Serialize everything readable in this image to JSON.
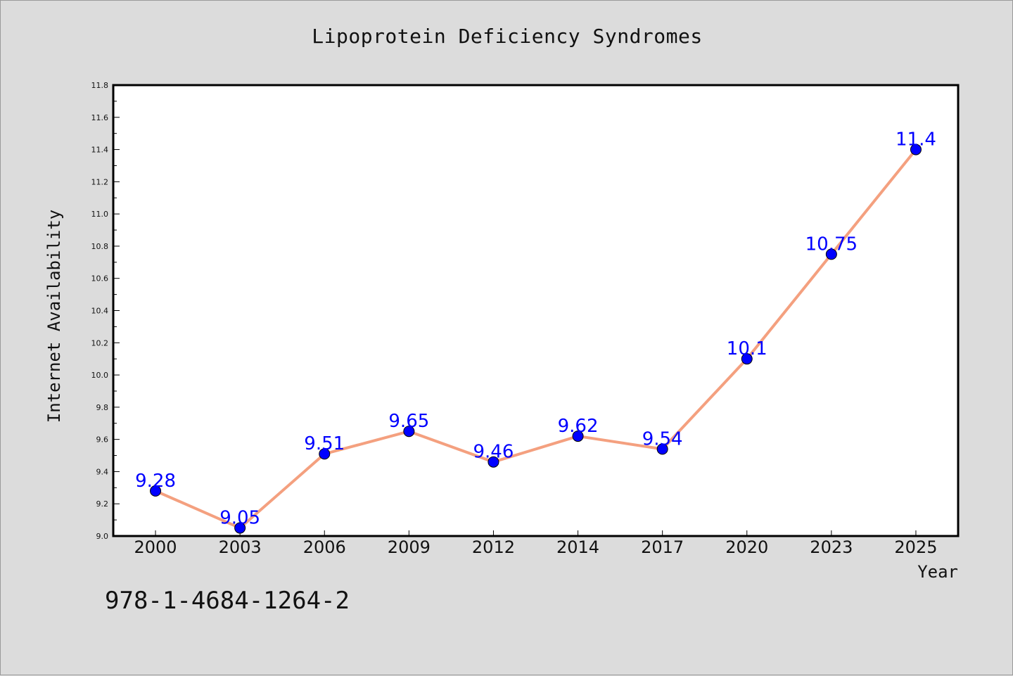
{
  "chart_data": {
    "type": "line",
    "title": "Lipoprotein Deficiency Syndromes",
    "xlabel": "Year",
    "ylabel": "Internet Availability",
    "categories": [
      "2000",
      "2003",
      "2006",
      "2009",
      "2012",
      "2014",
      "2017",
      "2020",
      "2023",
      "2025"
    ],
    "series": [
      {
        "values": [
          9.28,
          9.05,
          9.51,
          9.65,
          9.46,
          9.62,
          9.54,
          10.1,
          10.75,
          11.4
        ]
      }
    ],
    "data_labels": [
      "9.28",
      "9.05",
      "9.51",
      "9.65",
      "9.46",
      "9.62",
      "9.54",
      "10.1",
      "10.75",
      "11.4"
    ],
    "ylim": [
      9.0,
      11.8
    ],
    "yticks": [
      9.0,
      9.2,
      9.4,
      9.6,
      9.8,
      10.0,
      10.2,
      10.4,
      10.6,
      10.8,
      11.0,
      11.2,
      11.4,
      11.6,
      11.8
    ],
    "ytick_labels": [
      "9.0",
      "9.2",
      "9.4",
      "9.6",
      "9.8",
      "10.0",
      "10.2",
      "10.4",
      "10.6",
      "10.8",
      "11.0",
      "11.2",
      "11.4",
      "11.6",
      "11.8"
    ],
    "grid": false,
    "legend": "none",
    "colors": {
      "line": "#f4a07f",
      "marker": "#0000ff",
      "label": "#0000ff",
      "background": "#dcdcdc",
      "plot_background": "#ffffff"
    }
  },
  "annotation": "978-1-4684-1264-2"
}
